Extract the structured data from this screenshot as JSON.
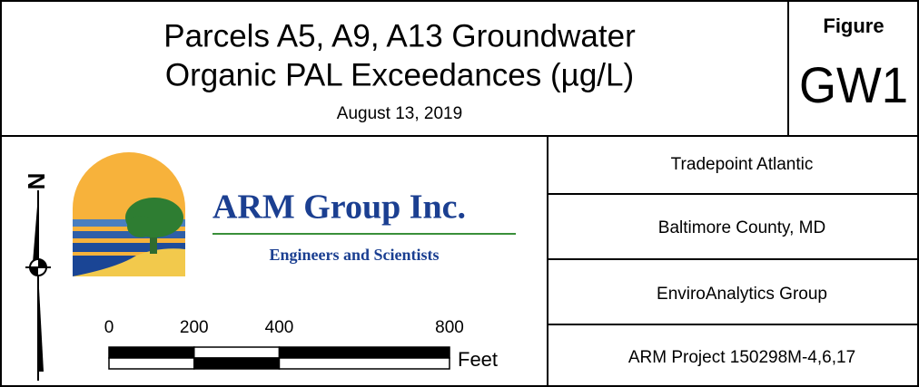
{
  "title": {
    "lines": [
      "Parcels A5, A9, A13 Groundwater",
      "Organic PAL Exceedances (µg/L)"
    ],
    "date": "August 13, 2019"
  },
  "figure": {
    "label": "Figure",
    "number": "GW1"
  },
  "logo": {
    "name": "ARM Group Inc.",
    "tagline": "Engineers and Scientists"
  },
  "scale": {
    "ticks": [
      0,
      200,
      400,
      800
    ],
    "unit": "Feet"
  },
  "info": [
    "Tradepoint Atlantic",
    "Baltimore County, MD",
    "EnviroAnalytics Group",
    "ARM Project 150298M-4,6,17"
  ]
}
